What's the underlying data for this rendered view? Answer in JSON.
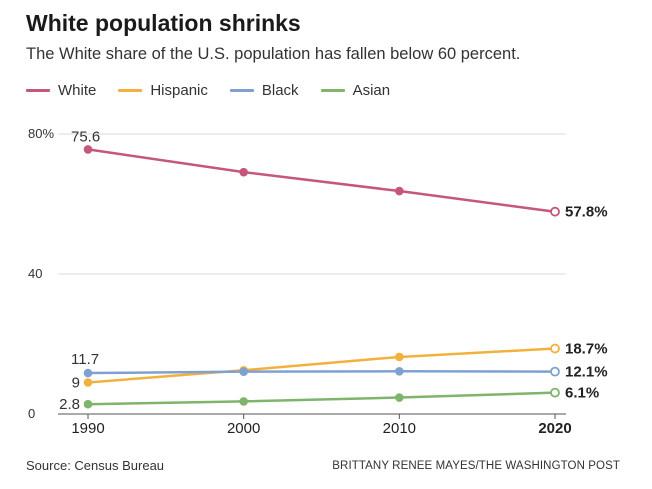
{
  "title": "White population shrinks",
  "subtitle": "The White share of the U.S. population has fallen below 60 percent.",
  "legend": [
    {
      "name": "White",
      "color": "#c5577a"
    },
    {
      "name": "Hispanic",
      "color": "#f2b13d"
    },
    {
      "name": "Black",
      "color": "#7fa1d1"
    },
    {
      "name": "Asian",
      "color": "#7fb46b"
    }
  ],
  "source": "Source: Census Bureau",
  "credit": "BRITTANY RENEE MAYES/THE WASHINGTON POST",
  "chart_data": {
    "type": "line",
    "title": "White population shrinks",
    "xlabel": "",
    "ylabel": "",
    "x": [
      1990,
      2000,
      2010,
      2020
    ],
    "x_tick_labels": [
      "1990",
      "2000",
      "2010",
      "2020"
    ],
    "x_tick_bold": [
      false,
      false,
      false,
      true
    ],
    "y_ticks": [
      0,
      40,
      80
    ],
    "y_tick_labels": [
      "0",
      "40",
      "80%"
    ],
    "ylim": [
      0,
      80
    ],
    "grid": true,
    "legend_position": "top-left",
    "series": [
      {
        "name": "White",
        "color": "#c5577a",
        "values": [
          75.6,
          69.1,
          63.7,
          57.8
        ],
        "start_label": "75.6",
        "end_label": "57.8%"
      },
      {
        "name": "Hispanic",
        "color": "#f2b13d",
        "values": [
          9,
          12.5,
          16.3,
          18.7
        ],
        "start_label": "9",
        "end_label": "18.7%"
      },
      {
        "name": "Black",
        "color": "#7fa1d1",
        "values": [
          11.7,
          12.1,
          12.2,
          12.1
        ],
        "start_label": "11.7",
        "end_label": "12.1%"
      },
      {
        "name": "Asian",
        "color": "#7fb46b",
        "values": [
          2.8,
          3.6,
          4.7,
          6.1
        ],
        "start_label": "2.8",
        "end_label": "6.1%"
      }
    ]
  }
}
